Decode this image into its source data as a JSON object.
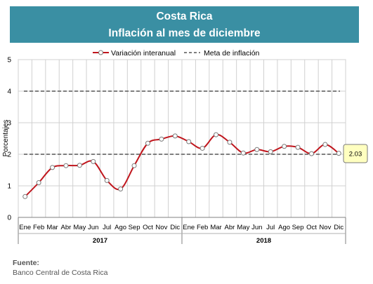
{
  "header": {
    "title": "Costa Rica",
    "subtitle": "Inflación al mes de diciembre"
  },
  "colors": {
    "banner": "#3a8fa3",
    "series_line": "#c0161d",
    "target_line": "#7f7f7f",
    "callout_fill": "#ffffc0"
  },
  "chart_data": {
    "type": "line",
    "ylabel": "Porcentajes",
    "ylim": [
      0,
      5
    ],
    "yticks": [
      "0",
      "1",
      "2",
      "3",
      "4",
      "5"
    ],
    "grid": true,
    "legend_position": "top",
    "categories": [
      "Ene",
      "Feb",
      "Mar",
      "Abr",
      "May",
      "Jun",
      "Jul",
      "Ago",
      "Sep",
      "Oct",
      "Nov",
      "Dic",
      "Ene",
      "Feb",
      "Mar",
      "Abr",
      "May",
      "Jun",
      "Jul",
      "Ago",
      "Sep",
      "Oct",
      "Nov",
      "Dic"
    ],
    "groups": [
      {
        "label": "2017",
        "count": 12
      },
      {
        "label": "2018",
        "count": 12
      }
    ],
    "series": [
      {
        "name": "Variación interanual",
        "values": [
          0.66,
          1.1,
          1.58,
          1.64,
          1.65,
          1.77,
          1.17,
          0.9,
          1.64,
          2.35,
          2.48,
          2.58,
          2.4,
          2.19,
          2.62,
          2.38,
          2.04,
          2.15,
          2.08,
          2.25,
          2.22,
          2.02,
          2.31,
          2.03
        ]
      },
      {
        "name": "Meta de inflación",
        "upper": 4,
        "lower": 2
      }
    ],
    "annotation": "2.03"
  },
  "source": {
    "label": "Fuente:",
    "text": "Banco Central de Costa Rica"
  }
}
